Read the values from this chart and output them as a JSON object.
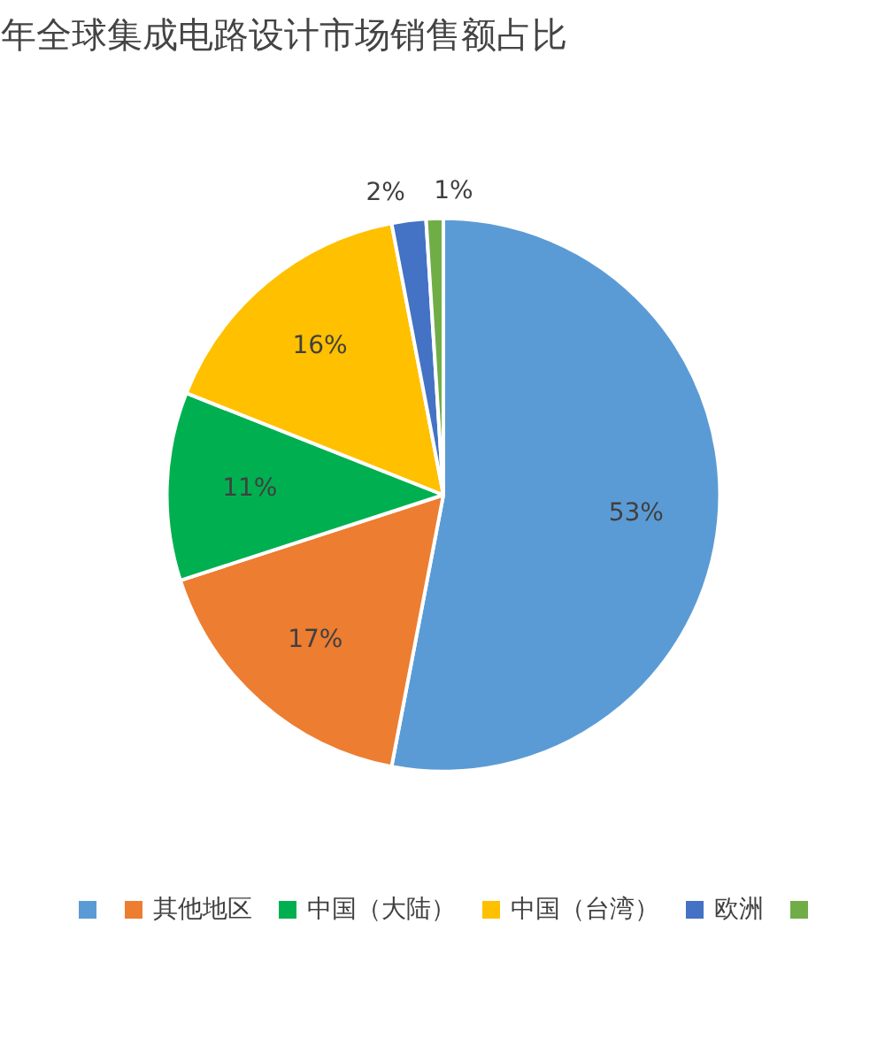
{
  "chart_data": {
    "type": "pie",
    "title": "年全球集成电路设计市场销售额占比",
    "categories": [
      null,
      "其他地区",
      "中国（大陆）",
      "中国（台湾）",
      "欧洲",
      null
    ],
    "values": [
      53,
      17,
      11,
      16,
      2,
      1
    ],
    "colors": [
      "#5b9bd5",
      "#ed7d31",
      "#00b050",
      "#ffc000",
      "#4472c4",
      "#70ad47"
    ],
    "value_labels": [
      "53%",
      "17%",
      "11%",
      "16%",
      "2%",
      "1%"
    ],
    "legend": "bottom"
  }
}
